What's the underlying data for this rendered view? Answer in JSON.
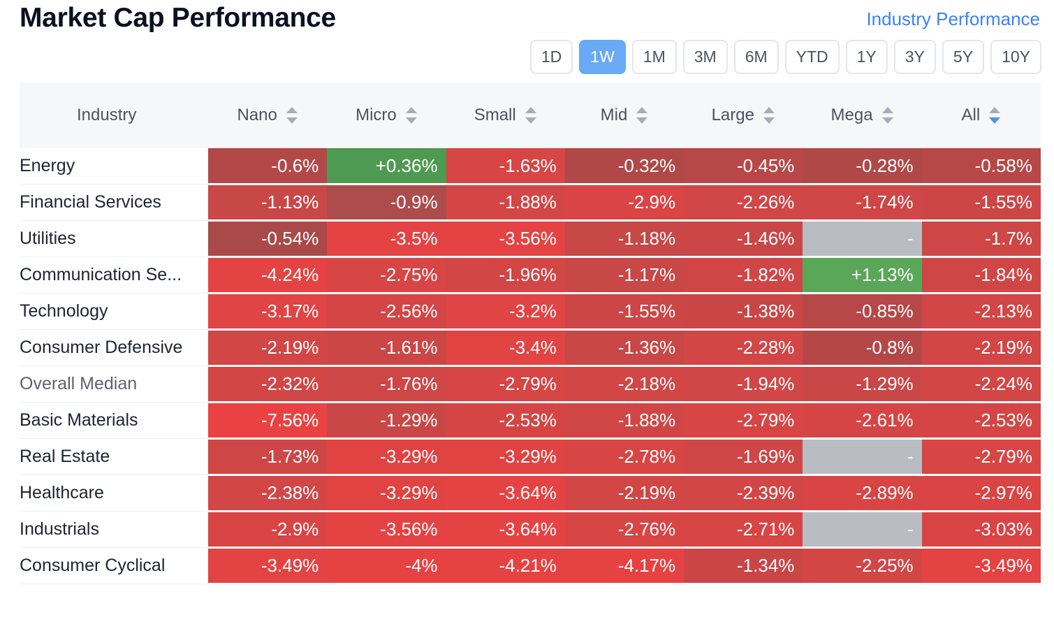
{
  "header": {
    "title": "Market Cap Performance",
    "link_label": "Industry Performance"
  },
  "periods": [
    "1D",
    "1W",
    "1M",
    "3M",
    "6M",
    "YTD",
    "1Y",
    "3Y",
    "5Y",
    "10Y"
  ],
  "selected_period": "1W",
  "table": {
    "columns": [
      "Industry",
      "Nano",
      "Micro",
      "Small",
      "Mid",
      "Large",
      "Mega",
      "All"
    ],
    "sorted_column": "All",
    "rows": [
      {
        "industry": "Energy",
        "values": [
          "-0.6%",
          "+0.36%",
          "-1.63%",
          "-0.32%",
          "-0.45%",
          "-0.28%",
          "-0.58%"
        ],
        "colors": [
          "#b34848",
          "#4f9a52",
          "#d84545",
          "#b04848",
          "#b84747",
          "#b14848",
          "#b84747"
        ]
      },
      {
        "industry": "Financial Services",
        "values": [
          "-1.13%",
          "-0.9%",
          "-1.88%",
          "-2.9%",
          "-2.26%",
          "-1.74%",
          "-1.55%"
        ],
        "colors": [
          "#c84747",
          "#ac4c4c",
          "#d44646",
          "#d94444",
          "#d14646",
          "#cf4646",
          "#cd4646"
        ]
      },
      {
        "industry": "Utilities",
        "values": [
          "-0.54%",
          "-3.5%",
          "-3.56%",
          "-1.18%",
          "-1.46%",
          "-",
          "-1.7%"
        ],
        "colors": [
          "#a94949",
          "#e54343",
          "#e54343",
          "#c84747",
          "#cb4646",
          "#b9bcc3",
          "#cf4646"
        ]
      },
      {
        "industry": "Communication Se...",
        "values": [
          "-4.24%",
          "-2.75%",
          "-1.96%",
          "-1.17%",
          "-1.82%",
          "+1.13%",
          "-1.84%"
        ],
        "colors": [
          "#e44343",
          "#d84545",
          "#d24646",
          "#c84747",
          "#d04646",
          "#5aa75a",
          "#d04646"
        ]
      },
      {
        "industry": "Technology",
        "values": [
          "-3.17%",
          "-2.56%",
          "-3.2%",
          "-1.55%",
          "-1.38%",
          "-0.85%",
          "-2.13%"
        ],
        "colors": [
          "#e04444",
          "#d54545",
          "#e04444",
          "#cd4646",
          "#ca4646",
          "#b84747",
          "#d24646"
        ]
      },
      {
        "industry": "Consumer Defensive",
        "values": [
          "-2.19%",
          "-1.61%",
          "-3.4%",
          "-1.36%",
          "-2.28%",
          "-0.8%",
          "-2.19%"
        ],
        "colors": [
          "#d24646",
          "#cd4646",
          "#e24343",
          "#c94747",
          "#d24646",
          "#b64747",
          "#d24646"
        ]
      },
      {
        "industry": "Overall Median",
        "values": [
          "-2.32%",
          "-1.76%",
          "-2.79%",
          "-2.18%",
          "-1.94%",
          "-1.29%",
          "-2.24%"
        ],
        "colors": [
          "#d24646",
          "#cf4646",
          "#d84545",
          "#d24646",
          "#d14646",
          "#c94747",
          "#d24646"
        ]
      },
      {
        "industry": "Basic Materials",
        "values": [
          "-7.56%",
          "-1.29%",
          "-2.53%",
          "-1.88%",
          "-2.79%",
          "-2.61%",
          "-2.53%"
        ],
        "colors": [
          "#ea4242",
          "#c94747",
          "#d54545",
          "#d04646",
          "#d84545",
          "#d64545",
          "#d54545"
        ]
      },
      {
        "industry": "Real Estate",
        "values": [
          "-1.73%",
          "-3.29%",
          "-3.29%",
          "-2.78%",
          "-1.69%",
          "-",
          "-2.79%"
        ],
        "colors": [
          "#cf4646",
          "#e14343",
          "#e14343",
          "#d84545",
          "#cf4646",
          "#b9bcc3",
          "#d84545"
        ]
      },
      {
        "industry": "Healthcare",
        "values": [
          "-2.38%",
          "-3.29%",
          "-3.64%",
          "-2.19%",
          "-2.39%",
          "-2.89%",
          "-2.97%"
        ],
        "colors": [
          "#d34646",
          "#e14343",
          "#e54343",
          "#d24646",
          "#d34646",
          "#d94444",
          "#da4444"
        ]
      },
      {
        "industry": "Industrials",
        "values": [
          "-2.9%",
          "-3.56%",
          "-3.64%",
          "-2.76%",
          "-2.71%",
          "-",
          "-3.03%"
        ],
        "colors": [
          "#d94444",
          "#e54343",
          "#e54343",
          "#d84545",
          "#d74545",
          "#b9bcc3",
          "#db4444"
        ]
      },
      {
        "industry": "Consumer Cyclical",
        "values": [
          "-3.49%",
          "-4%",
          "-4.21%",
          "-4.17%",
          "-1.34%",
          "-2.25%",
          "-3.49%"
        ],
        "colors": [
          "#e34343",
          "#e74242",
          "#e74242",
          "#e74242",
          "#ca4646",
          "#d24646",
          "#e34343"
        ]
      }
    ]
  },
  "colors": {
    "accent": "#3b82f6",
    "active_period": "#69a9f5",
    "header_bg": "#f6f7f8",
    "positive": "#4f9a52",
    "negative": "#d84545",
    "no_data": "#b9bcc3"
  },
  "icons": {
    "sort": "sort-arrows-icon"
  }
}
